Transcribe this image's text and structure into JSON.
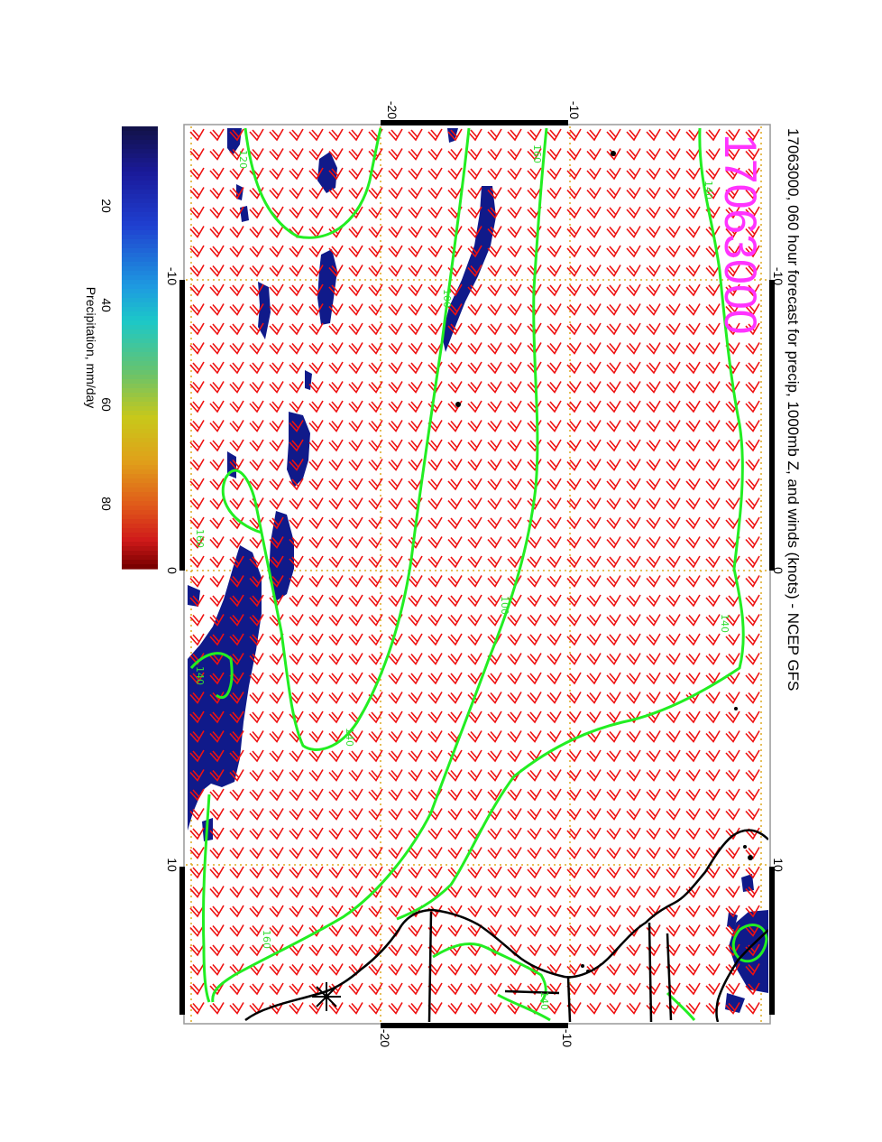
{
  "title": "17063000, 060 hour forecast for precip, 1000mb Z, and winds (knots) - NCEP GFS",
  "stamp": "17063000",
  "colorbar": {
    "label": "Precipitation, mm/day",
    "ticks": [
      "20",
      "40",
      "60",
      "80"
    ]
  },
  "axes": {
    "top_ticks": [
      "-20",
      "-10"
    ],
    "bottom_ticks": [
      "-20",
      "-10"
    ],
    "left_ticks": [
      "-10",
      "0",
      "10"
    ],
    "right_ticks": [
      "-10",
      "0",
      "10"
    ]
  },
  "contour_labels": [
    "120",
    "160",
    "140",
    "100",
    "140",
    "100",
    "140",
    "140",
    "160",
    "160",
    "140"
  ],
  "colors": {
    "contour": "#22ee22",
    "wind_barb": "#ee1111",
    "precip": "#101a8a",
    "coast": "#000000",
    "grid": "#ddaa22",
    "stamp": "#ff33ff"
  },
  "icons": {
    "station_marker": "asterisk-icon"
  }
}
